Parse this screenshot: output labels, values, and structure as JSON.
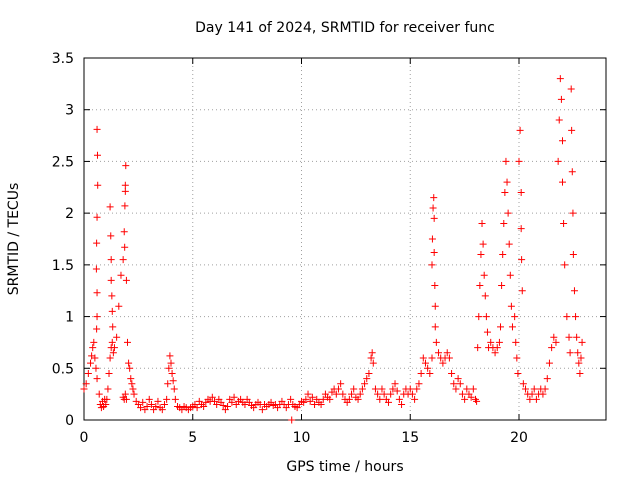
{
  "chart_data": {
    "type": "scatter",
    "title": "Day 141 of 2024, SRMTID for receiver func",
    "xlabel": "GPS time / hours",
    "ylabel": "SRMTID / TECUs",
    "xlim": [
      0,
      24
    ],
    "ylim": [
      0,
      3.5
    ],
    "xticks": [
      0,
      5,
      10,
      15,
      20
    ],
    "yticks": [
      0,
      0.5,
      1,
      1.5,
      2,
      2.5,
      3,
      3.5
    ],
    "grid": true,
    "marker": "+",
    "marker_color": "#ff0000",
    "series": [
      {
        "name": "SRMTID",
        "points": [
          [
            0.0,
            0.3
          ],
          [
            0.1,
            0.35
          ],
          [
            0.2,
            0.45
          ],
          [
            0.3,
            0.55
          ],
          [
            0.35,
            0.62
          ],
          [
            0.4,
            0.7
          ],
          [
            0.45,
            0.75
          ],
          [
            0.5,
            0.6
          ],
          [
            0.55,
            0.5
          ],
          [
            0.6,
            0.4
          ],
          [
            0.6,
            2.81
          ],
          [
            0.62,
            2.56
          ],
          [
            0.63,
            2.27
          ],
          [
            0.6,
            1.96
          ],
          [
            0.58,
            1.71
          ],
          [
            0.57,
            1.46
          ],
          [
            0.6,
            1.23
          ],
          [
            0.6,
            1.0
          ],
          [
            0.58,
            0.88
          ],
          [
            0.7,
            0.25
          ],
          [
            0.75,
            0.15
          ],
          [
            0.8,
            0.12
          ],
          [
            0.85,
            0.18
          ],
          [
            0.9,
            0.13
          ],
          [
            0.95,
            0.2
          ],
          [
            1.0,
            0.15
          ],
          [
            1.05,
            0.2
          ],
          [
            1.1,
            0.3
          ],
          [
            1.15,
            0.45
          ],
          [
            1.2,
            0.6
          ],
          [
            1.25,
            0.7
          ],
          [
            1.3,
            0.75
          ],
          [
            1.35,
            0.65
          ],
          [
            1.4,
            0.7
          ],
          [
            1.5,
            0.8
          ],
          [
            1.2,
            2.06
          ],
          [
            1.23,
            1.78
          ],
          [
            1.25,
            1.55
          ],
          [
            1.25,
            1.35
          ],
          [
            1.28,
            1.2
          ],
          [
            1.3,
            1.05
          ],
          [
            1.32,
            0.9
          ],
          [
            1.6,
            1.1
          ],
          [
            1.7,
            1.4
          ],
          [
            1.8,
            1.55
          ],
          [
            1.85,
            1.82
          ],
          [
            1.88,
            2.07
          ],
          [
            1.9,
            2.21
          ],
          [
            1.92,
            2.46
          ],
          [
            1.9,
            2.27
          ],
          [
            1.87,
            1.67
          ],
          [
            1.95,
            1.35
          ],
          [
            1.8,
            0.22
          ],
          [
            1.85,
            0.2
          ],
          [
            1.9,
            0.25
          ],
          [
            1.95,
            0.2
          ],
          [
            2.0,
            0.75
          ],
          [
            2.05,
            0.55
          ],
          [
            2.1,
            0.5
          ],
          [
            2.15,
            0.4
          ],
          [
            2.2,
            0.35
          ],
          [
            2.25,
            0.3
          ],
          [
            2.3,
            0.25
          ],
          [
            2.4,
            0.18
          ],
          [
            2.5,
            0.15
          ],
          [
            2.6,
            0.12
          ],
          [
            2.7,
            0.17
          ],
          [
            2.8,
            0.1
          ],
          [
            2.9,
            0.13
          ],
          [
            3.0,
            0.2
          ],
          [
            3.1,
            0.15
          ],
          [
            3.2,
            0.1
          ],
          [
            3.3,
            0.13
          ],
          [
            3.4,
            0.18
          ],
          [
            3.5,
            0.12
          ],
          [
            3.6,
            0.1
          ],
          [
            3.7,
            0.15
          ],
          [
            3.8,
            0.2
          ],
          [
            3.85,
            0.35
          ],
          [
            3.9,
            0.5
          ],
          [
            3.95,
            0.62
          ],
          [
            4.0,
            0.55
          ],
          [
            4.05,
            0.45
          ],
          [
            4.1,
            0.38
          ],
          [
            4.15,
            0.3
          ],
          [
            4.2,
            0.2
          ],
          [
            4.3,
            0.13
          ],
          [
            4.4,
            0.12
          ],
          [
            4.5,
            0.1
          ],
          [
            4.6,
            0.13
          ],
          [
            4.7,
            0.12
          ],
          [
            4.8,
            0.1
          ],
          [
            4.9,
            0.12
          ],
          [
            5.0,
            0.13
          ],
          [
            5.1,
            0.15
          ],
          [
            5.2,
            0.12
          ],
          [
            5.3,
            0.18
          ],
          [
            5.4,
            0.15
          ],
          [
            5.5,
            0.13
          ],
          [
            5.6,
            0.17
          ],
          [
            5.7,
            0.2
          ],
          [
            5.8,
            0.18
          ],
          [
            5.9,
            0.22
          ],
          [
            6.0,
            0.18
          ],
          [
            6.1,
            0.15
          ],
          [
            6.2,
            0.2
          ],
          [
            6.3,
            0.17
          ],
          [
            6.4,
            0.14
          ],
          [
            6.5,
            0.1
          ],
          [
            6.6,
            0.13
          ],
          [
            6.7,
            0.2
          ],
          [
            6.8,
            0.17
          ],
          [
            6.9,
            0.22
          ],
          [
            7.0,
            0.15
          ],
          [
            7.1,
            0.18
          ],
          [
            7.2,
            0.2
          ],
          [
            7.3,
            0.17
          ],
          [
            7.4,
            0.15
          ],
          [
            7.5,
            0.2
          ],
          [
            7.6,
            0.17
          ],
          [
            7.7,
            0.14
          ],
          [
            7.8,
            0.12
          ],
          [
            7.9,
            0.15
          ],
          [
            8.0,
            0.17
          ],
          [
            8.1,
            0.15
          ],
          [
            8.2,
            0.1
          ],
          [
            8.3,
            0.15
          ],
          [
            8.4,
            0.13
          ],
          [
            8.5,
            0.15
          ],
          [
            8.6,
            0.17
          ],
          [
            8.7,
            0.14
          ],
          [
            8.8,
            0.15
          ],
          [
            8.9,
            0.12
          ],
          [
            9.0,
            0.15
          ],
          [
            9.1,
            0.18
          ],
          [
            9.2,
            0.15
          ],
          [
            9.3,
            0.12
          ],
          [
            9.4,
            0.15
          ],
          [
            9.5,
            0.2
          ],
          [
            9.55,
            0.0
          ],
          [
            9.6,
            0.15
          ],
          [
            9.7,
            0.13
          ],
          [
            9.8,
            0.12
          ],
          [
            9.9,
            0.15
          ],
          [
            10.0,
            0.18
          ],
          [
            10.1,
            0.17
          ],
          [
            10.2,
            0.2
          ],
          [
            10.3,
            0.25
          ],
          [
            10.4,
            0.18
          ],
          [
            10.5,
            0.22
          ],
          [
            10.6,
            0.15
          ],
          [
            10.7,
            0.2
          ],
          [
            10.8,
            0.17
          ],
          [
            10.9,
            0.15
          ],
          [
            11.0,
            0.2
          ],
          [
            11.1,
            0.25
          ],
          [
            11.2,
            0.22
          ],
          [
            11.3,
            0.2
          ],
          [
            11.4,
            0.27
          ],
          [
            11.5,
            0.3
          ],
          [
            11.6,
            0.25
          ],
          [
            11.7,
            0.3
          ],
          [
            11.8,
            0.35
          ],
          [
            11.9,
            0.25
          ],
          [
            12.0,
            0.2
          ],
          [
            12.1,
            0.17
          ],
          [
            12.2,
            0.2
          ],
          [
            12.3,
            0.25
          ],
          [
            12.4,
            0.3
          ],
          [
            12.5,
            0.22
          ],
          [
            12.6,
            0.2
          ],
          [
            12.7,
            0.25
          ],
          [
            12.8,
            0.3
          ],
          [
            12.9,
            0.35
          ],
          [
            13.0,
            0.4
          ],
          [
            13.1,
            0.45
          ],
          [
            13.2,
            0.6
          ],
          [
            13.25,
            0.65
          ],
          [
            13.3,
            0.55
          ],
          [
            13.4,
            0.3
          ],
          [
            13.5,
            0.25
          ],
          [
            13.6,
            0.2
          ],
          [
            13.7,
            0.3
          ],
          [
            13.8,
            0.25
          ],
          [
            13.9,
            0.2
          ],
          [
            14.0,
            0.17
          ],
          [
            14.1,
            0.25
          ],
          [
            14.2,
            0.3
          ],
          [
            14.3,
            0.35
          ],
          [
            14.4,
            0.28
          ],
          [
            14.5,
            0.2
          ],
          [
            14.6,
            0.15
          ],
          [
            14.7,
            0.25
          ],
          [
            14.8,
            0.3
          ],
          [
            14.9,
            0.25
          ],
          [
            15.0,
            0.3
          ],
          [
            15.1,
            0.25
          ],
          [
            15.2,
            0.2
          ],
          [
            15.3,
            0.3
          ],
          [
            15.4,
            0.35
          ],
          [
            15.5,
            0.45
          ],
          [
            15.6,
            0.6
          ],
          [
            15.7,
            0.55
          ],
          [
            15.8,
            0.5
          ],
          [
            15.9,
            0.45
          ],
          [
            16.0,
            0.6
          ],
          [
            16.0,
            1.5
          ],
          [
            16.02,
            1.75
          ],
          [
            16.05,
            2.05
          ],
          [
            16.08,
            2.15
          ],
          [
            16.1,
            1.95
          ],
          [
            16.1,
            1.62
          ],
          [
            16.13,
            1.3
          ],
          [
            16.15,
            1.1
          ],
          [
            16.15,
            0.9
          ],
          [
            16.2,
            0.75
          ],
          [
            16.3,
            0.65
          ],
          [
            16.4,
            0.6
          ],
          [
            16.5,
            0.55
          ],
          [
            16.6,
            0.6
          ],
          [
            16.7,
            0.65
          ],
          [
            16.8,
            0.6
          ],
          [
            16.9,
            0.45
          ],
          [
            17.0,
            0.35
          ],
          [
            17.1,
            0.3
          ],
          [
            17.2,
            0.4
          ],
          [
            17.3,
            0.35
          ],
          [
            17.4,
            0.25
          ],
          [
            17.5,
            0.2
          ],
          [
            17.6,
            0.3
          ],
          [
            17.7,
            0.25
          ],
          [
            17.8,
            0.22
          ],
          [
            17.9,
            0.3
          ],
          [
            18.0,
            0.2
          ],
          [
            18.05,
            0.18
          ],
          [
            18.1,
            0.7
          ],
          [
            18.15,
            1.0
          ],
          [
            18.2,
            1.3
          ],
          [
            18.25,
            1.6
          ],
          [
            18.3,
            1.9
          ],
          [
            18.35,
            1.7
          ],
          [
            18.4,
            1.4
          ],
          [
            18.45,
            1.2
          ],
          [
            18.5,
            1.0
          ],
          [
            18.55,
            0.85
          ],
          [
            18.6,
            0.7
          ],
          [
            18.7,
            0.75
          ],
          [
            18.8,
            0.7
          ],
          [
            18.9,
            0.65
          ],
          [
            19.0,
            0.7
          ],
          [
            19.1,
            0.75
          ],
          [
            19.15,
            0.9
          ],
          [
            19.2,
            1.3
          ],
          [
            19.25,
            1.6
          ],
          [
            19.3,
            1.9
          ],
          [
            19.35,
            2.2
          ],
          [
            19.4,
            2.5
          ],
          [
            19.45,
            2.3
          ],
          [
            19.5,
            2.0
          ],
          [
            19.55,
            1.7
          ],
          [
            19.6,
            1.4
          ],
          [
            19.65,
            1.1
          ],
          [
            19.7,
            0.9
          ],
          [
            19.8,
            1.0
          ],
          [
            19.85,
            0.75
          ],
          [
            19.9,
            0.6
          ],
          [
            19.95,
            0.45
          ],
          [
            20.0,
            2.5
          ],
          [
            20.05,
            2.8
          ],
          [
            20.1,
            2.2
          ],
          [
            20.1,
            1.85
          ],
          [
            20.12,
            1.55
          ],
          [
            20.15,
            1.25
          ],
          [
            20.2,
            0.35
          ],
          [
            20.3,
            0.3
          ],
          [
            20.4,
            0.25
          ],
          [
            20.5,
            0.2
          ],
          [
            20.6,
            0.25
          ],
          [
            20.7,
            0.3
          ],
          [
            20.8,
            0.2
          ],
          [
            20.9,
            0.25
          ],
          [
            21.0,
            0.3
          ],
          [
            21.1,
            0.25
          ],
          [
            21.2,
            0.3
          ],
          [
            21.3,
            0.4
          ],
          [
            21.4,
            0.55
          ],
          [
            21.5,
            0.7
          ],
          [
            21.6,
            0.8
          ],
          [
            21.7,
            0.75
          ],
          [
            21.8,
            2.5
          ],
          [
            21.85,
            2.9
          ],
          [
            21.9,
            3.3
          ],
          [
            21.95,
            3.1
          ],
          [
            22.0,
            2.7
          ],
          [
            22.0,
            2.3
          ],
          [
            22.05,
            1.9
          ],
          [
            22.1,
            1.5
          ],
          [
            22.2,
            1.0
          ],
          [
            22.3,
            0.8
          ],
          [
            22.35,
            0.65
          ],
          [
            22.4,
            3.2
          ],
          [
            22.42,
            2.8
          ],
          [
            22.45,
            2.4
          ],
          [
            22.48,
            2.0
          ],
          [
            22.5,
            1.6
          ],
          [
            22.55,
            1.25
          ],
          [
            22.6,
            1.0
          ],
          [
            22.65,
            0.8
          ],
          [
            22.7,
            0.65
          ],
          [
            22.75,
            0.55
          ],
          [
            22.8,
            0.45
          ],
          [
            22.85,
            0.6
          ],
          [
            22.9,
            0.75
          ]
        ]
      }
    ]
  }
}
